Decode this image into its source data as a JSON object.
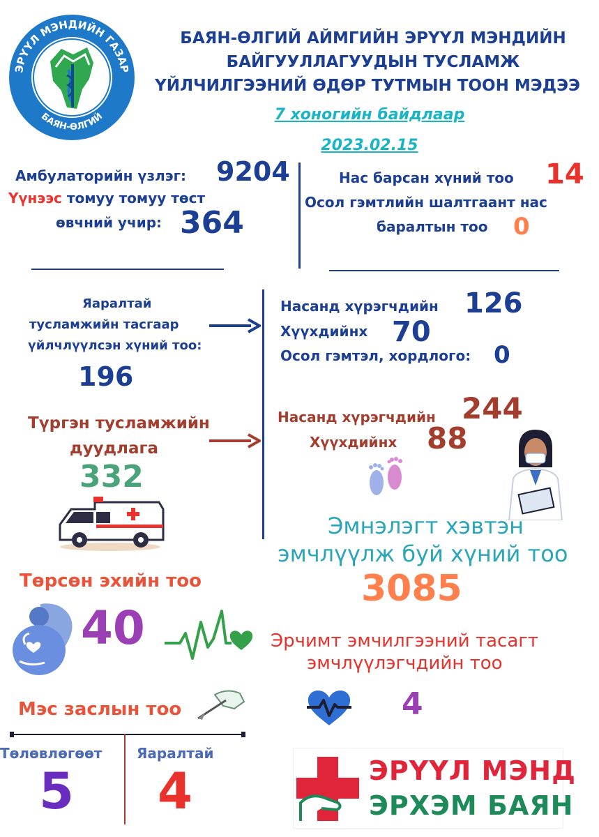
{
  "logo": {
    "ring_top": "ЭРҮҮЛ МЭНДИЙН ГАЗАР",
    "ring_bottom": "БАЯН-ӨЛГИЙ"
  },
  "header": {
    "title_line1": "БАЯН-ӨЛГИЙ АЙМГИЙН ЭРҮҮЛ МЭНДИЙН",
    "title_line2": "БАЙГУУЛЛАГУУДЫН ТУСЛАМЖ",
    "title_line3": "ҮЙЛЧИЛГЭЭНИЙ ӨДӨР ТУТМЫН ТООН МЭДЭЭ",
    "period": "7 хоногийн байдлаар",
    "date": "2023.02.15"
  },
  "ambulatory": {
    "label": "Амбулаторийн үзлэг:",
    "value": "9204",
    "flu_red": "Үүнээс",
    "flu_rest": " томуу томуу төст",
    "flu_line2": "өвчний учир:",
    "flu_value": "364"
  },
  "deaths": {
    "label": "Нас барсан хүний тоо",
    "value": "14",
    "accident_line1": "Осол гэмтлийн шалтгаант нас",
    "accident_line2": "баралтын тоо",
    "accident_value": "0"
  },
  "emergency_dept": {
    "line1": "Яаралтай",
    "line2": "тусламжийн тасгаар",
    "line3": "үйлчлүүлсэн хүний тоо:",
    "value": "196",
    "adults_label": "Насанд хүрэгчдийн",
    "adults_value": "126",
    "children_label": "Хүүхдийнх",
    "children_value": "70",
    "injury_label": "Осол гэмтэл, хордлого:",
    "injury_value": "0"
  },
  "ambulance_calls": {
    "line1": "Түргэн тусламжийн",
    "line2": "дуудлага",
    "value": "332",
    "adults_label": "Насанд хүрэгчдийн",
    "adults_value": "244",
    "children_label": "Хүүхдийнх",
    "children_value": "88"
  },
  "inpatients": {
    "line1": "Эмнэлэгт хэвтэн",
    "line2": "эмчлүүлж буй хүний тоо",
    "value": "3085"
  },
  "births": {
    "label": "Төрсөн эхийн тоо",
    "value": "40"
  },
  "icu": {
    "line1": "Эрчимт эмчилгээний тасагт",
    "line2": "эмчлүүлэгчдийн тоо",
    "value": "4"
  },
  "surgery": {
    "label": "Мэс заслын тоо",
    "planned_label": "Төлөвлөгөөт",
    "planned_value": "5",
    "urgent_label": "Яаралтай",
    "urgent_value": "4"
  },
  "banner": {
    "line1": "ЭРҮҮЛ МЭНД",
    "line2": "ЭРХЭМ БАЯН"
  },
  "colors": {
    "navy": "#1c3f94",
    "rust": "#a33d2e",
    "red": "#e8322b",
    "orange": "#ff7f4d",
    "purple": "#9b3fb5",
    "teal": "#2a9da8",
    "banner_red": "#e0243a",
    "banner_green": "#1e8a5a"
  }
}
